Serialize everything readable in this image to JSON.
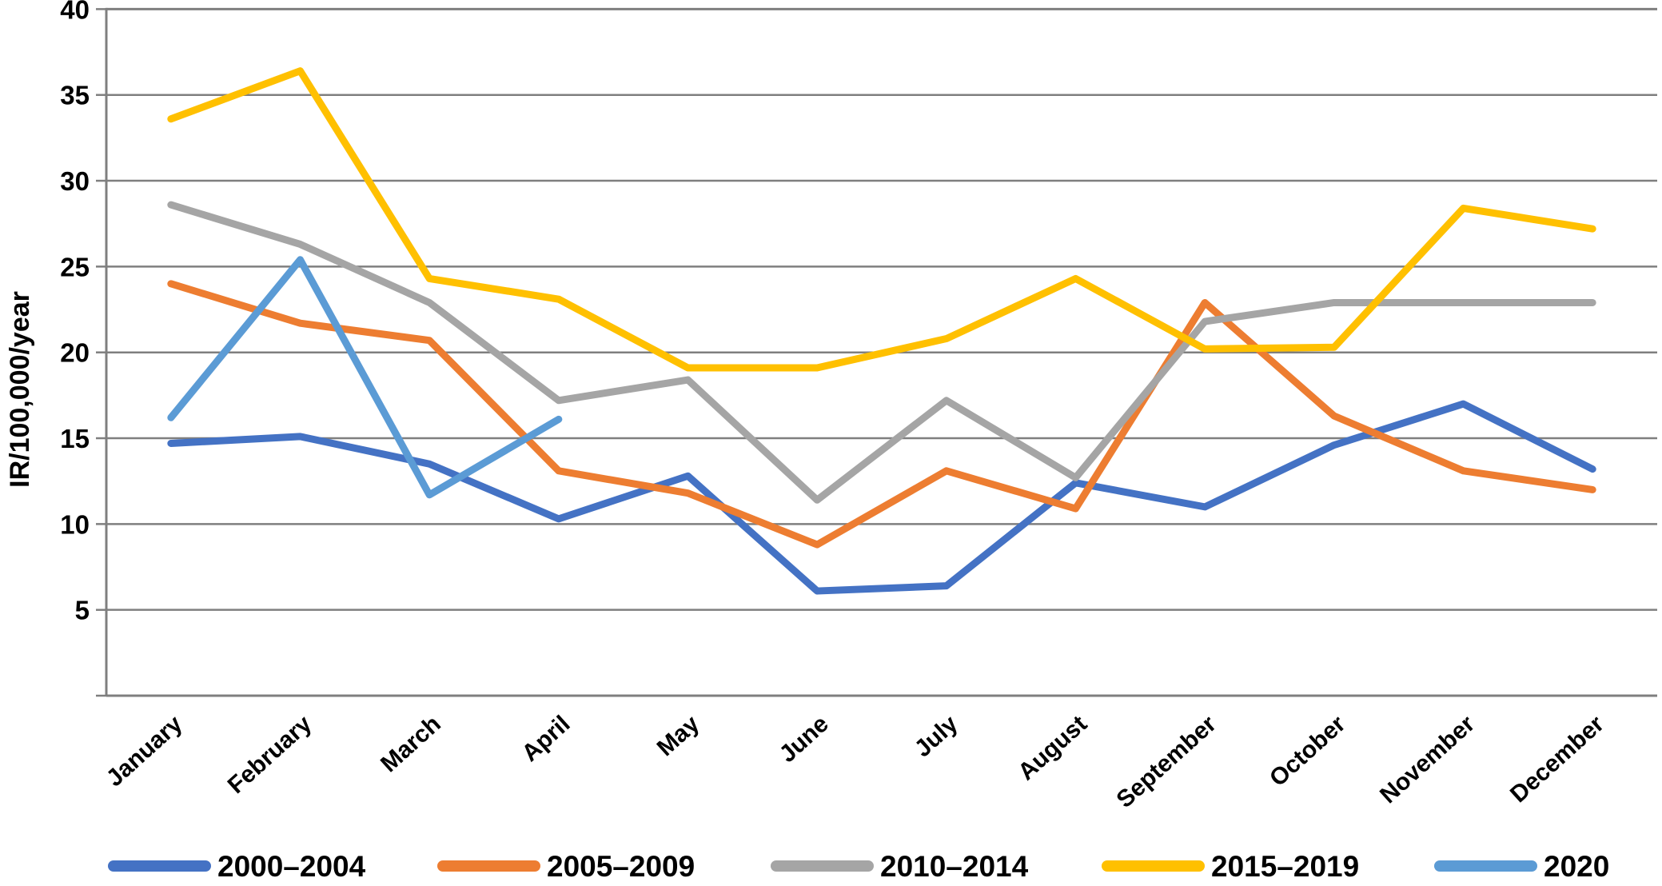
{
  "chart_data": {
    "type": "line",
    "title": "",
    "xlabel": "",
    "ylabel": "IR/100,000/year",
    "categories": [
      "January",
      "February",
      "March",
      "April",
      "May",
      "June",
      "July",
      "August",
      "September",
      "October",
      "November",
      "December"
    ],
    "series": [
      {
        "name": "2000–2004",
        "color": "#4472C4",
        "values": [
          14.7,
          15.1,
          13.5,
          10.3,
          12.8,
          6.1,
          6.4,
          12.4,
          11.0,
          14.6,
          17.0,
          13.2
        ]
      },
      {
        "name": "2005–2009",
        "color": "#ED7D31",
        "values": [
          24.0,
          21.7,
          20.7,
          13.1,
          11.8,
          8.8,
          13.1,
          10.9,
          22.9,
          16.3,
          13.1,
          12.0
        ]
      },
      {
        "name": "2010–2014",
        "color": "#A5A5A5",
        "values": [
          28.6,
          26.3,
          22.9,
          17.2,
          18.4,
          11.4,
          17.2,
          12.7,
          21.8,
          22.9,
          22.9,
          22.9
        ]
      },
      {
        "name": "2015–2019",
        "color": "#FFC000",
        "values": [
          33.6,
          36.4,
          24.3,
          23.1,
          19.1,
          19.1,
          20.8,
          24.3,
          20.2,
          20.3,
          28.4,
          27.2
        ]
      },
      {
        "name": "2020",
        "color": "#5B9BD5",
        "values": [
          16.2,
          25.4,
          11.7,
          16.1,
          null,
          null,
          null,
          null,
          null,
          null,
          null,
          null
        ]
      }
    ],
    "ylim": [
      0,
      40
    ],
    "y_ticks": [
      40,
      35,
      30,
      25,
      20,
      15,
      10,
      5
    ],
    "grid": "horizontal-only",
    "legend_position": "bottom"
  },
  "style": {
    "gridline_color": "#7F7F7F",
    "axis_color": "#7F7F7F",
    "text_color": "#000000",
    "background": "#FFFFFF"
  }
}
